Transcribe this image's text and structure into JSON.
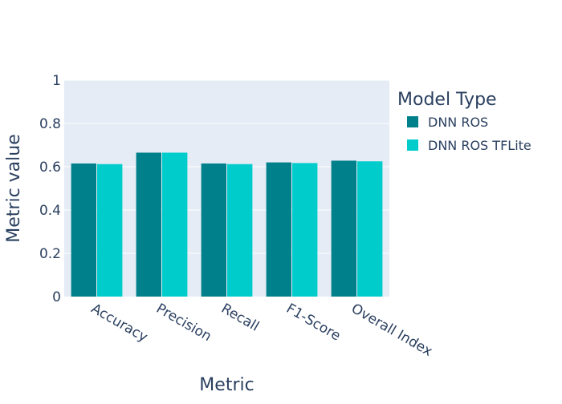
{
  "chart_data": {
    "type": "bar",
    "barmode": "group",
    "categories": [
      "Accuracy",
      "Precision",
      "Recall",
      "F1-Score",
      "Overall Index"
    ],
    "series": [
      {
        "name": "DNN ROS",
        "color": "#00808a",
        "values": [
          0.615,
          0.665,
          0.615,
          0.62,
          0.628
        ]
      },
      {
        "name": "DNN ROS TFLite",
        "color": "#00cccc",
        "values": [
          0.612,
          0.665,
          0.612,
          0.617,
          0.625
        ]
      }
    ],
    "xlabel": "Metric",
    "ylabel": "Metric value",
    "ylim": [
      0,
      1
    ],
    "yticks": [
      "0",
      "0.2",
      "0.4",
      "0.6",
      "0.8",
      "1"
    ],
    "ytick_values": [
      0,
      0.2,
      0.4,
      0.6,
      0.8,
      1
    ],
    "legend_title": "Model Type",
    "legend_position": "top-right",
    "grid": true,
    "plot_background": "#e5ecf6"
  }
}
